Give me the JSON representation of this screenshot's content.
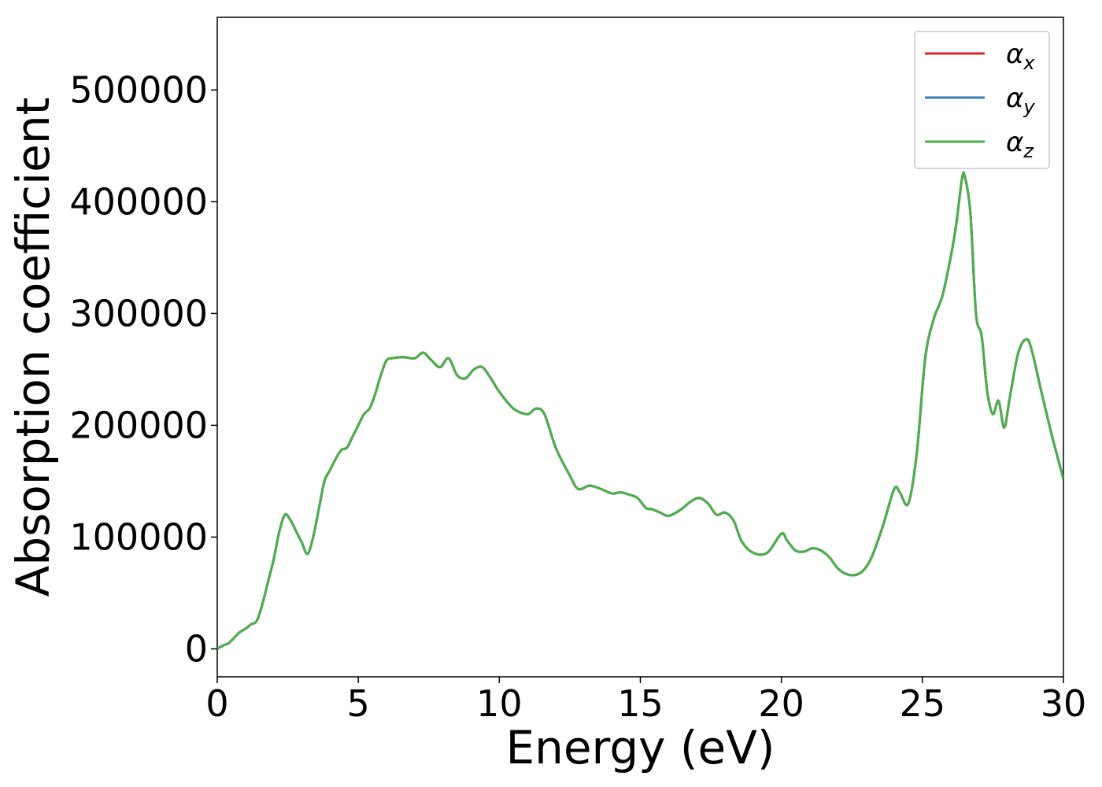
{
  "chart_data": {
    "type": "line",
    "title": "",
    "xlabel": "Energy (eV)",
    "ylabel": "Absorption coefficient",
    "xlim": [
      0,
      30
    ],
    "ylim": [
      -25000,
      565000
    ],
    "xticks": [
      0,
      5,
      10,
      15,
      20,
      25,
      30
    ],
    "yticks": [
      0,
      100000,
      200000,
      300000,
      400000,
      500000
    ],
    "xtick_labels": [
      "0",
      "5",
      "10",
      "15",
      "20",
      "25",
      "30"
    ],
    "ytick_labels": [
      "0",
      "100000",
      "200000",
      "300000",
      "400000",
      "500000"
    ],
    "grid": false,
    "legend_position": "top-right",
    "x": [
      0,
      0.2,
      0.4,
      0.6,
      0.8,
      1.0,
      1.2,
      1.4,
      1.6,
      1.8,
      2.0,
      2.2,
      2.4,
      2.6,
      2.8,
      3.0,
      3.2,
      3.4,
      3.6,
      3.8,
      4.0,
      4.2,
      4.4,
      4.6,
      4.8,
      5.0,
      5.2,
      5.4,
      5.6,
      5.8,
      6.0,
      6.2,
      6.6,
      7.0,
      7.3,
      7.6,
      7.9,
      8.2,
      8.5,
      8.8,
      9.1,
      9.4,
      9.7,
      10.0,
      10.5,
      11.0,
      11.3,
      11.6,
      12.0,
      12.5,
      12.8,
      13.2,
      13.6,
      14.0,
      14.3,
      14.6,
      14.9,
      15.2,
      15.4,
      15.7,
      16.0,
      16.4,
      16.8,
      17.1,
      17.4,
      17.7,
      18.0,
      18.3,
      18.6,
      19.0,
      19.5,
      20.0,
      20.2,
      20.5,
      20.8,
      21.1,
      21.4,
      21.7,
      22.0,
      22.3,
      22.6,
      22.9,
      23.2,
      23.6,
      24.0,
      24.2,
      24.5,
      24.8,
      25.1,
      25.4,
      25.7,
      26.0,
      26.2,
      26.4,
      26.5,
      26.7,
      26.9,
      27.1,
      27.3,
      27.5,
      27.7,
      27.9,
      28.1,
      28.4,
      28.7,
      28.9,
      29.2,
      29.6,
      30.0
    ],
    "series": [
      {
        "name": "α_x",
        "color": "#d62728",
        "values": [
          0,
          3000,
          5000,
          10000,
          15000,
          18000,
          22000,
          25000,
          40000,
          60000,
          80000,
          105000,
          120000,
          115000,
          105000,
          95000,
          85000,
          100000,
          125000,
          150000,
          160000,
          170000,
          178000,
          180000,
          190000,
          200000,
          210000,
          215000,
          228000,
          245000,
          258000,
          260000,
          261000,
          260000,
          265000,
          258000,
          252000,
          260000,
          245000,
          242000,
          250000,
          252000,
          242000,
          230000,
          215000,
          210000,
          215000,
          210000,
          180000,
          155000,
          143000,
          146000,
          143000,
          139000,
          140000,
          138000,
          135000,
          126000,
          125000,
          122000,
          119000,
          124000,
          132000,
          135000,
          130000,
          120000,
          122000,
          115000,
          96000,
          86000,
          86000,
          103000,
          97000,
          88000,
          87000,
          90000,
          88000,
          82000,
          72000,
          67000,
          66000,
          70000,
          82000,
          110000,
          143000,
          140000,
          130000,
          175000,
          260000,
          295000,
          315000,
          350000,
          380000,
          420000,
          423000,
          390000,
          300000,
          280000,
          230000,
          210000,
          222000,
          198000,
          225000,
          265000,
          277000,
          265000,
          232000,
          190000,
          152000
        ]
      },
      {
        "name": "α_y",
        "color": "#377eb8",
        "values": [
          0,
          3000,
          5000,
          10000,
          15000,
          18000,
          22000,
          25000,
          40000,
          60000,
          80000,
          105000,
          120000,
          115000,
          105000,
          95000,
          85000,
          100000,
          125000,
          150000,
          160000,
          170000,
          178000,
          180000,
          190000,
          200000,
          210000,
          215000,
          228000,
          245000,
          258000,
          260000,
          261000,
          260000,
          265000,
          258000,
          252000,
          260000,
          245000,
          242000,
          250000,
          252000,
          242000,
          230000,
          215000,
          210000,
          215000,
          210000,
          180000,
          155000,
          143000,
          146000,
          143000,
          139000,
          140000,
          138000,
          135000,
          126000,
          125000,
          122000,
          119000,
          124000,
          132000,
          135000,
          130000,
          120000,
          122000,
          115000,
          96000,
          86000,
          86000,
          103000,
          97000,
          88000,
          87000,
          90000,
          88000,
          82000,
          72000,
          67000,
          66000,
          70000,
          82000,
          110000,
          143000,
          140000,
          130000,
          175000,
          260000,
          295000,
          315000,
          350000,
          380000,
          420000,
          423000,
          390000,
          300000,
          280000,
          230000,
          210000,
          222000,
          198000,
          225000,
          265000,
          277000,
          265000,
          232000,
          190000,
          152000
        ]
      },
      {
        "name": "α_z",
        "color": "#4daf4a",
        "values": [
          0,
          3000,
          5000,
          10000,
          15000,
          18000,
          22000,
          25000,
          40000,
          60000,
          80000,
          105000,
          120000,
          115000,
          105000,
          95000,
          85000,
          100000,
          125000,
          150000,
          160000,
          170000,
          178000,
          180000,
          190000,
          200000,
          210000,
          215000,
          228000,
          245000,
          258000,
          260000,
          261000,
          260000,
          265000,
          258000,
          252000,
          260000,
          245000,
          242000,
          250000,
          252000,
          242000,
          230000,
          215000,
          210000,
          215000,
          210000,
          180000,
          155000,
          143000,
          146000,
          143000,
          139000,
          140000,
          138000,
          135000,
          126000,
          125000,
          122000,
          119000,
          124000,
          132000,
          135000,
          130000,
          120000,
          122000,
          115000,
          96000,
          86000,
          86000,
          103000,
          97000,
          88000,
          87000,
          90000,
          88000,
          82000,
          72000,
          67000,
          66000,
          70000,
          82000,
          110000,
          143000,
          140000,
          130000,
          175000,
          260000,
          295000,
          315000,
          350000,
          380000,
          420000,
          423000,
          390000,
          300000,
          280000,
          230000,
          210000,
          222000,
          198000,
          225000,
          265000,
          277000,
          265000,
          232000,
          190000,
          152000
        ]
      }
    ],
    "legend": [
      {
        "symbol": "α",
        "sub": "x",
        "color": "#d62728"
      },
      {
        "symbol": "α",
        "sub": "y",
        "color": "#377eb8"
      },
      {
        "symbol": "α",
        "sub": "z",
        "color": "#4daf4a"
      }
    ]
  }
}
